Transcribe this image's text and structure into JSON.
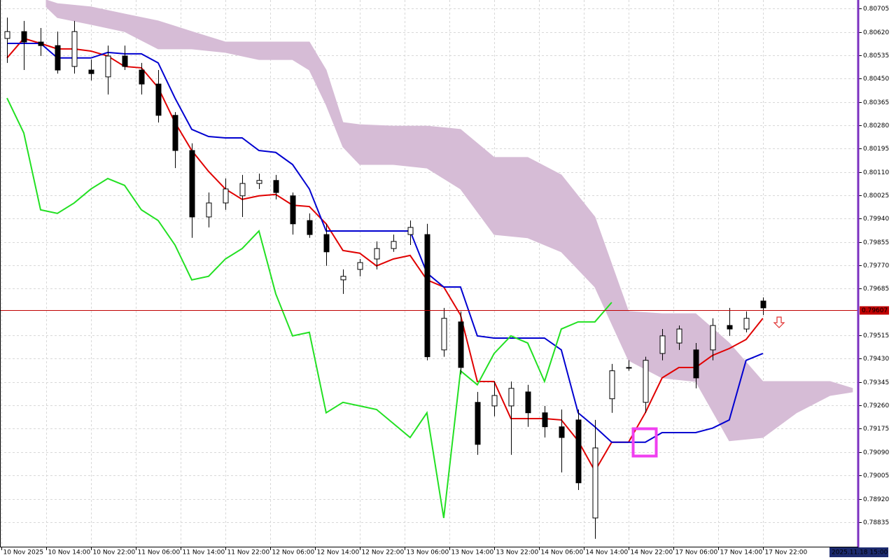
{
  "chart_data": {
    "type": "candlestick",
    "xlim": [
      -0.25,
      152.9
    ],
    "ylim": [
      0.78748,
      0.80736
    ],
    "grid": true,
    "up_color": "#ffffff",
    "down_color": "#000000",
    "x": [
      1,
      4,
      7,
      10,
      13,
      16,
      19,
      22,
      25,
      28,
      31,
      34,
      37,
      40,
      43,
      46,
      49,
      52,
      55,
      58,
      61,
      64,
      67,
      70,
      73,
      76,
      79,
      82,
      85,
      88,
      91,
      94,
      97,
      100,
      103,
      106,
      109,
      112,
      115,
      118,
      121,
      124,
      127,
      130,
      133,
      136
    ],
    "open": [
      0.80596,
      0.80621,
      0.80583,
      0.8057,
      0.80494,
      0.80481,
      0.80456,
      0.80532,
      0.80481,
      0.8043,
      0.80316,
      0.80188,
      0.79946,
      0.79997,
      0.80023,
      0.80068,
      0.80079,
      0.80023,
      0.79933,
      0.79882,
      0.79717,
      0.79755,
      0.79793,
      0.79831,
      0.79882,
      0.79882,
      0.79462,
      0.79564,
      0.79271,
      0.79258,
      0.79258,
      0.79309,
      0.79233,
      0.79182,
      0.79207,
      0.7885,
      0.79284,
      0.79398,
      0.79271,
      0.79449,
      0.79487,
      0.79462,
      0.79462,
      0.79551,
      0.79538,
      0.7964
    ],
    "high": [
      0.80672,
      0.8066,
      0.80634,
      0.80621,
      0.8066,
      0.80519,
      0.8057,
      0.8057,
      0.80507,
      0.80481,
      0.80328,
      0.80214,
      0.80035,
      0.80086,
      0.80099,
      0.80104,
      0.80099,
      0.80035,
      0.79959,
      0.79921,
      0.79755,
      0.79793,
      0.79857,
      0.79882,
      0.79933,
      0.79921,
      0.79615,
      0.79602,
      0.79309,
      0.79347,
      0.79347,
      0.79335,
      0.79258,
      0.79245,
      0.79245,
      0.79207,
      0.79411,
      0.79424,
      0.79437,
      0.79538,
      0.79551,
      0.79487,
      0.79577,
      0.79615,
      0.79602,
      0.79653
    ],
    "low": [
      0.80507,
      0.80481,
      0.80532,
      0.80468,
      0.80468,
      0.80443,
      0.80392,
      0.80481,
      0.80392,
      0.8029,
      0.80124,
      0.7987,
      0.79908,
      0.79972,
      0.79946,
      0.80048,
      0.8001,
      0.79882,
      0.7987,
      0.79768,
      0.79666,
      0.7973,
      0.79755,
      0.79819,
      0.79844,
      0.79424,
      0.79437,
      0.79373,
      0.7908,
      0.7922,
      0.7908,
      0.79182,
      0.79143,
      0.79016,
      0.78952,
      0.78774,
      0.79233,
      0.79386,
      0.79233,
      0.79424,
      0.79462,
      0.79322,
      0.79424,
      0.79513,
      0.79526,
      0.79589
    ],
    "close": [
      0.80621,
      0.80583,
      0.8057,
      0.80481,
      0.80621,
      0.80468,
      0.80532,
      0.80494,
      0.8043,
      0.80316,
      0.80188,
      0.79946,
      0.79997,
      0.80048,
      0.80068,
      0.80079,
      0.80035,
      0.79921,
      0.79882,
      0.79819,
      0.7973,
      0.7978,
      0.79831,
      0.79857,
      0.79908,
      0.79437,
      0.79577,
      0.79398,
      0.79118,
      0.79296,
      0.79322,
      0.79233,
      0.79182,
      0.79143,
      0.78978,
      0.79105,
      0.79386,
      0.79398,
      0.79424,
      0.79513,
      0.79538,
      0.7936,
      0.79551,
      0.79538,
      0.79577,
      0.79615
    ],
    "lines": [
      {
        "color": "#e00000",
        "values": [
          0.80525,
          0.80596,
          0.80578,
          0.80558,
          0.80558,
          0.8055,
          0.80532,
          0.80494,
          0.80489,
          0.80417,
          0.8029,
          0.80188,
          0.80112,
          0.80048,
          0.8001,
          0.80023,
          0.80028,
          0.79989,
          0.79984,
          0.79921,
          0.79824,
          0.79814,
          0.79768,
          0.79793,
          0.79806,
          0.79717,
          0.79691,
          0.79589,
          0.79347,
          0.79347,
          0.79212,
          0.79212,
          0.79212,
          0.79207,
          0.79131,
          0.79021,
          0.79126,
          0.79126,
          0.79233,
          0.7936,
          0.79398,
          0.79398,
          0.79442,
          0.79467,
          0.795,
          0.79577
        ]
      },
      {
        "color": "#0000d0",
        "values": [
          0.80578,
          0.80578,
          0.80578,
          0.80525,
          0.80525,
          0.80525,
          0.80545,
          0.8054,
          0.8054,
          0.80507,
          0.80379,
          0.80265,
          0.80239,
          0.80234,
          0.80234,
          0.80188,
          0.80181,
          0.80137,
          0.80048,
          0.79895,
          0.79895,
          0.79895,
          0.79895,
          0.79895,
          0.79895,
          0.79742,
          0.79691,
          0.79691,
          0.79513,
          0.79505,
          0.79505,
          0.79505,
          0.79505,
          0.79462,
          0.79233,
          0.79182,
          0.79126,
          0.79126,
          0.79126,
          0.79161,
          0.79161,
          0.79161,
          0.79177,
          0.79207,
          0.79424,
          0.79449
        ]
      },
      {
        "color": "#22e022",
        "values": [
          0.80379,
          0.80252,
          0.79972,
          0.79959,
          0.79997,
          0.80048,
          0.80086,
          0.80061,
          0.79972,
          0.79933,
          0.79844,
          0.79717,
          0.7973,
          0.79793,
          0.79831,
          0.79895,
          0.79666,
          0.79513,
          0.79526,
          0.79233,
          0.79271,
          0.79258,
          0.79245,
          0.79194,
          0.79143,
          0.79233,
          0.7885,
          0.79386,
          0.79335,
          0.79449,
          0.79513,
          0.79487,
          0.79347,
          0.79538,
          0.79564,
          0.79564,
          0.79635,
          null,
          null,
          null,
          null,
          null,
          null,
          null,
          null,
          null
        ]
      }
    ],
    "cloud": {
      "color": "#d6bcd6",
      "x": [
        8,
        10,
        16,
        22,
        28,
        34,
        40,
        46,
        52,
        55,
        58,
        61,
        64,
        70,
        76,
        82,
        88,
        94,
        100,
        106,
        112,
        118,
        124,
        130,
        136,
        142,
        148,
        152
      ],
      "upper": [
        0.80736,
        0.80723,
        0.80711,
        0.80685,
        0.8066,
        0.80621,
        0.80583,
        0.80583,
        0.80583,
        0.80583,
        0.80481,
        0.8029,
        0.80282,
        0.80277,
        0.80277,
        0.80265,
        0.80163,
        0.80163,
        0.80099,
        0.79946,
        0.79602,
        0.79594,
        0.79594,
        0.79487,
        0.79347,
        0.79347,
        0.79347,
        0.79322
      ],
      "lower": [
        0.80711,
        0.80672,
        0.80647,
        0.80621,
        0.80558,
        0.80558,
        0.80545,
        0.80519,
        0.80519,
        0.80481,
        0.80354,
        0.80201,
        0.80137,
        0.80137,
        0.80124,
        0.80048,
        0.79882,
        0.7987,
        0.79819,
        0.79691,
        0.79424,
        0.7936,
        0.79347,
        0.79131,
        0.79143,
        0.79233,
        0.79296,
        0.79309
      ]
    },
    "last_price": {
      "value": 0.79607,
      "color": "#c00000"
    },
    "yticks": [
      0.80705,
      {
        "value": 0.8062,
        "label": "0.80620"
      },
      0.80535,
      {
        "value": 0.8045,
        "label": "0.80450"
      },
      0.80365,
      {
        "value": 0.8028,
        "label": "0.80280"
      },
      0.80195,
      {
        "value": 0.8011,
        "label": "0.80110"
      },
      0.80025,
      {
        "value": 0.7994,
        "label": "0.79940"
      },
      0.79855,
      {
        "value": 0.7977,
        "label": "0.79770"
      },
      0.79685,
      0.79515,
      {
        "value": 0.7943,
        "label": "0.79430"
      },
      0.79345,
      {
        "value": 0.7926,
        "label": "0.79260"
      },
      0.79175,
      {
        "value": 0.7909,
        "label": "0.79090"
      },
      0.79005,
      {
        "value": 0.7892,
        "label": "0.78920"
      },
      0.78835
    ],
    "xticks": [
      {
        "value": 0,
        "label": "10 Nov 2025"
      },
      {
        "value": 8,
        "label": "10 Nov 14:00"
      },
      {
        "value": 16,
        "label": "10 Nov 22:00"
      },
      {
        "value": 24,
        "label": "11 Nov 06:00"
      },
      {
        "value": 32,
        "label": "11 Nov 14:00"
      },
      {
        "value": 40,
        "label": "11 Nov 22:00"
      },
      {
        "value": 48,
        "label": "12 Nov 06:00"
      },
      {
        "value": 56,
        "label": "12 Nov 14:00"
      },
      {
        "value": 64,
        "label": "12 Nov 22:00"
      },
      {
        "value": 72,
        "label": "13 Nov 06:00"
      },
      {
        "value": 80,
        "label": "13 Nov 14:00"
      },
      {
        "value": 88,
        "label": "13 Nov 22:00"
      },
      {
        "value": 96,
        "label": "14 Nov 06:00"
      },
      {
        "value": 104,
        "label": "14 Nov 14:00"
      },
      {
        "value": 112,
        "label": "14 Nov 22:00"
      },
      {
        "value": 120,
        "label": "17 Nov 06:00"
      },
      {
        "value": 128,
        "label": "17 Nov 14:00"
      },
      {
        "value": 136,
        "label": "17 Nov 22:00"
      }
    ],
    "date_label": "2025.11.18 15:00"
  }
}
